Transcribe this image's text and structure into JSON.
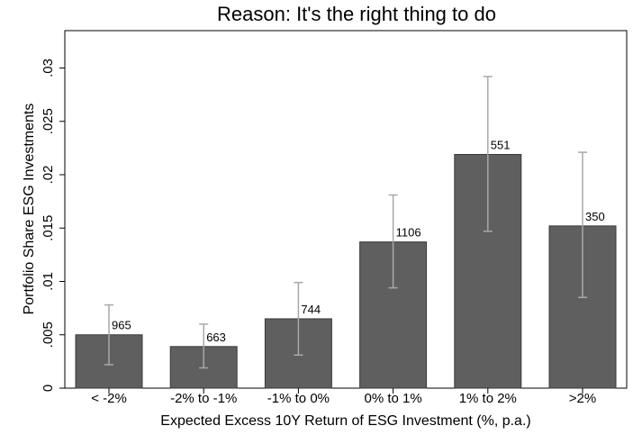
{
  "chart_data": {
    "type": "bar",
    "title": "Reason: It's the right thing to do",
    "xlabel": "Expected Excess 10Y Return of ESG Investment (%, p.a.)",
    "ylabel": "Portfolio Share ESG Investments",
    "categories": [
      "< -2%",
      "-2% to -1%",
      "-1% to 0%",
      "0% to 1%",
      "1% to 2%",
      ">2%"
    ],
    "values": [
      0.005,
      0.0039,
      0.0065,
      0.0137,
      0.0219,
      0.0152
    ],
    "ci_low": [
      0.0022,
      0.0019,
      0.0031,
      0.0094,
      0.0147,
      0.0085
    ],
    "ci_high": [
      0.0078,
      0.006,
      0.0099,
      0.0181,
      0.0292,
      0.0221
    ],
    "data_labels": [
      "965",
      "663",
      "744",
      "1106",
      "551",
      "350"
    ],
    "ylim": [
      0,
      0.0335
    ],
    "yticks": [
      0,
      0.005,
      0.01,
      0.015,
      0.02,
      0.025,
      0.03
    ],
    "ytick_labels": [
      "0",
      ".005",
      ".01",
      ".015",
      ".02",
      ".025",
      ".03"
    ],
    "grid": false,
    "bar_color": "#5f5f5f",
    "errorbar_color": "#a8a8a8"
  }
}
